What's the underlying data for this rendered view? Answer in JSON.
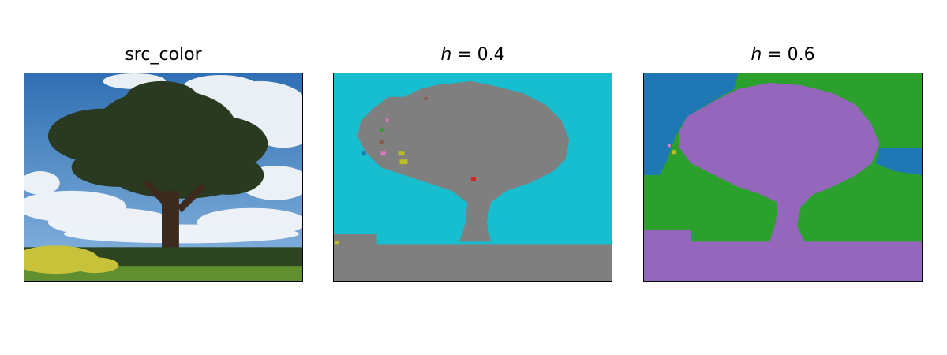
{
  "panels": [
    {
      "title": "src_color",
      "colors": {
        "sky_top": "#2f6fb3",
        "sky_bottom": "#8bb7e0",
        "cloud": "#f4f6fa",
        "tree": "#2a3a20",
        "trunk": "#3b2a1d",
        "hedge": "#2c4420",
        "grass": "#5f8f2f",
        "flowers": "#c8c23a"
      }
    },
    {
      "title_var": "h",
      "title_rest": " = 0.4",
      "colors": {
        "background": "#17becf",
        "segment": "#7f7f7f",
        "accent_1": "#d62728",
        "accent_2": "#bcbd22",
        "accent_3": "#e377c2",
        "accent_4": "#2ca02c",
        "accent_5": "#8c564b",
        "accent_6": "#1f77b4"
      }
    },
    {
      "title_var": "h",
      "title_rest": " = 0.6",
      "colors": {
        "sky": "#1f77b4",
        "vegetation": "#2ca02c",
        "tree_and_ground": "#9467bd",
        "accent_1": "#bcbd22",
        "accent_2": "#e377c2"
      }
    }
  ]
}
